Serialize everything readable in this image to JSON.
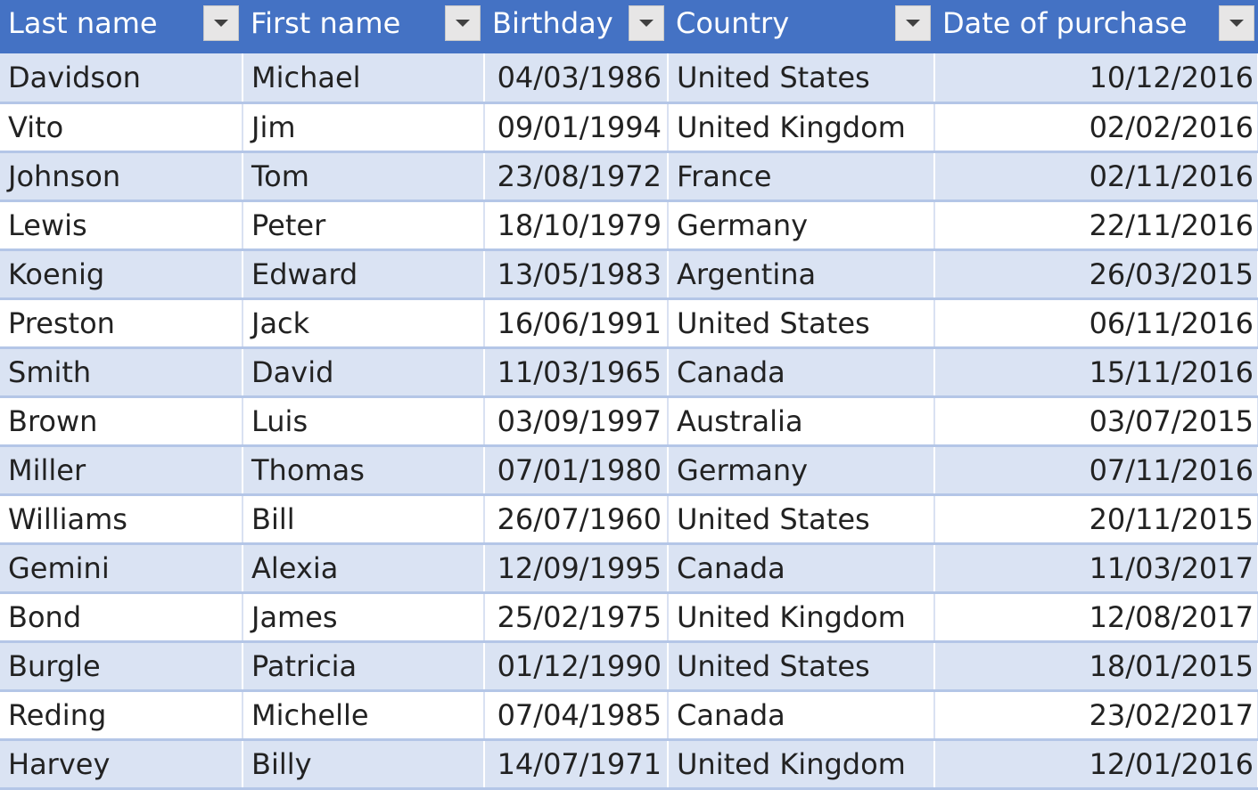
{
  "columns": [
    {
      "label": "Last name"
    },
    {
      "label": "First name"
    },
    {
      "label": "Birthday"
    },
    {
      "label": "Country"
    },
    {
      "label": "Date of purchase"
    }
  ],
  "rows": [
    {
      "last": "Davidson",
      "first": "Michael",
      "birthday": "04/03/1986",
      "country": "United States",
      "purchase": "10/12/2016"
    },
    {
      "last": "Vito",
      "first": "Jim",
      "birthday": "09/01/1994",
      "country": "United Kingdom",
      "purchase": "02/02/2016"
    },
    {
      "last": "Johnson",
      "first": "Tom",
      "birthday": "23/08/1972",
      "country": "France",
      "purchase": "02/11/2016"
    },
    {
      "last": "Lewis",
      "first": "Peter",
      "birthday": "18/10/1979",
      "country": "Germany",
      "purchase": "22/11/2016"
    },
    {
      "last": "Koenig",
      "first": "Edward",
      "birthday": "13/05/1983",
      "country": "Argentina",
      "purchase": "26/03/2015"
    },
    {
      "last": "Preston",
      "first": "Jack",
      "birthday": "16/06/1991",
      "country": "United States",
      "purchase": "06/11/2016"
    },
    {
      "last": "Smith",
      "first": "David",
      "birthday": "11/03/1965",
      "country": "Canada",
      "purchase": "15/11/2016"
    },
    {
      "last": "Brown",
      "first": "Luis",
      "birthday": "03/09/1997",
      "country": "Australia",
      "purchase": "03/07/2015"
    },
    {
      "last": "Miller",
      "first": "Thomas",
      "birthday": "07/01/1980",
      "country": "Germany",
      "purchase": "07/11/2016"
    },
    {
      "last": "Williams",
      "first": "Bill",
      "birthday": "26/07/1960",
      "country": "United States",
      "purchase": "20/11/2015"
    },
    {
      "last": "Gemini",
      "first": "Alexia",
      "birthday": "12/09/1995",
      "country": "Canada",
      "purchase": "11/03/2017"
    },
    {
      "last": "Bond",
      "first": "James",
      "birthday": "25/02/1975",
      "country": "United Kingdom",
      "purchase": "12/08/2017"
    },
    {
      "last": "Burgle",
      "first": "Patricia",
      "birthday": "01/12/1990",
      "country": "United States",
      "purchase": "18/01/2015"
    },
    {
      "last": "Reding",
      "first": "Michelle",
      "birthday": "07/04/1985",
      "country": "Canada",
      "purchase": "23/02/2017"
    },
    {
      "last": "Harvey",
      "first": "Billy",
      "birthday": "14/07/1971",
      "country": "United Kingdom",
      "purchase": "12/01/2016"
    }
  ],
  "colors": {
    "header_bg": "#4472c4",
    "band_bg": "#dae3f3",
    "row_border": "#b4c6e7"
  },
  "icons": {
    "filter": "chevron-down-icon"
  }
}
